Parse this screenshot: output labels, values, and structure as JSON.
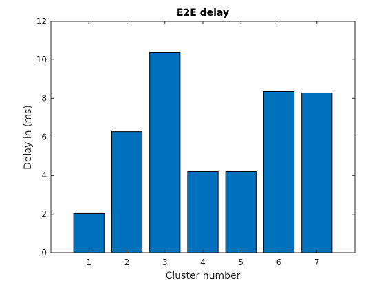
{
  "chart_data": {
    "type": "bar",
    "title": "E2E delay",
    "xlabel": "Cluster number",
    "ylabel": "Delay in (ms)",
    "categories": [
      "1",
      "2",
      "3",
      "4",
      "5",
      "6",
      "7"
    ],
    "values": [
      2.05,
      6.28,
      10.38,
      4.22,
      4.22,
      8.35,
      8.28
    ],
    "xlim": [
      0,
      8
    ],
    "ylim": [
      0,
      12
    ],
    "yticks": [
      "0",
      "2",
      "4",
      "6",
      "8",
      "10",
      "12"
    ],
    "grid": false,
    "bar_color": "#0072BD",
    "edge_color": "#000000"
  }
}
